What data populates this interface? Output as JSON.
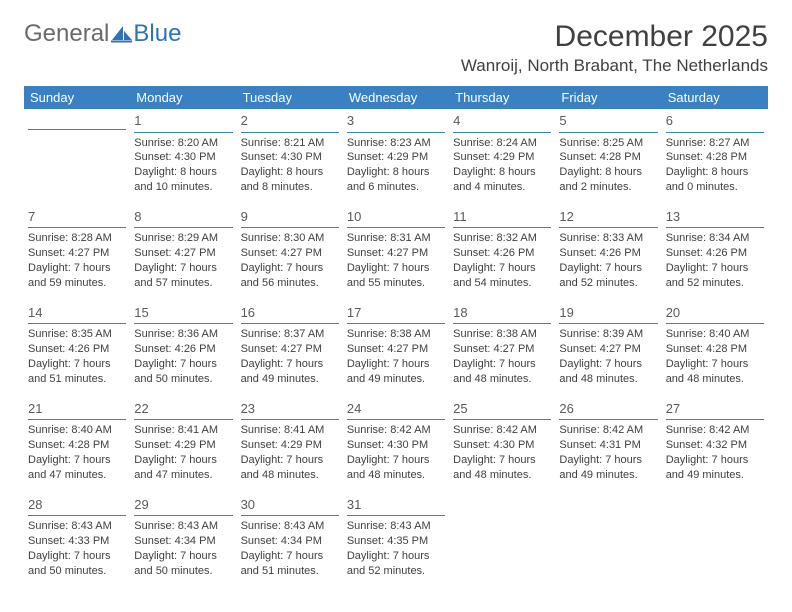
{
  "brand": {
    "part1": "General",
    "part2": "Blue"
  },
  "title": "December 2025",
  "subtitle": "Wanroij, North Brabant, The Netherlands",
  "colors": {
    "header_bg": "#3a81c4",
    "header_fg": "#ffffff",
    "rule": "#3a81c4",
    "text": "#404040",
    "brand_gray": "#6a6a6a",
    "brand_blue": "#2f72b8",
    "page_bg": "#ffffff"
  },
  "weekdays": [
    "Sunday",
    "Monday",
    "Tuesday",
    "Wednesday",
    "Thursday",
    "Friday",
    "Saturday"
  ],
  "first_weekday_index": 1,
  "days": [
    {
      "n": 1,
      "sunrise": "8:20 AM",
      "sunset": "4:30 PM",
      "dl": "8 hours and 10 minutes."
    },
    {
      "n": 2,
      "sunrise": "8:21 AM",
      "sunset": "4:30 PM",
      "dl": "8 hours and 8 minutes."
    },
    {
      "n": 3,
      "sunrise": "8:23 AM",
      "sunset": "4:29 PM",
      "dl": "8 hours and 6 minutes."
    },
    {
      "n": 4,
      "sunrise": "8:24 AM",
      "sunset": "4:29 PM",
      "dl": "8 hours and 4 minutes."
    },
    {
      "n": 5,
      "sunrise": "8:25 AM",
      "sunset": "4:28 PM",
      "dl": "8 hours and 2 minutes."
    },
    {
      "n": 6,
      "sunrise": "8:27 AM",
      "sunset": "4:28 PM",
      "dl": "8 hours and 0 minutes."
    },
    {
      "n": 7,
      "sunrise": "8:28 AM",
      "sunset": "4:27 PM",
      "dl": "7 hours and 59 minutes."
    },
    {
      "n": 8,
      "sunrise": "8:29 AM",
      "sunset": "4:27 PM",
      "dl": "7 hours and 57 minutes."
    },
    {
      "n": 9,
      "sunrise": "8:30 AM",
      "sunset": "4:27 PM",
      "dl": "7 hours and 56 minutes."
    },
    {
      "n": 10,
      "sunrise": "8:31 AM",
      "sunset": "4:27 PM",
      "dl": "7 hours and 55 minutes."
    },
    {
      "n": 11,
      "sunrise": "8:32 AM",
      "sunset": "4:26 PM",
      "dl": "7 hours and 54 minutes."
    },
    {
      "n": 12,
      "sunrise": "8:33 AM",
      "sunset": "4:26 PM",
      "dl": "7 hours and 52 minutes."
    },
    {
      "n": 13,
      "sunrise": "8:34 AM",
      "sunset": "4:26 PM",
      "dl": "7 hours and 52 minutes."
    },
    {
      "n": 14,
      "sunrise": "8:35 AM",
      "sunset": "4:26 PM",
      "dl": "7 hours and 51 minutes."
    },
    {
      "n": 15,
      "sunrise": "8:36 AM",
      "sunset": "4:26 PM",
      "dl": "7 hours and 50 minutes."
    },
    {
      "n": 16,
      "sunrise": "8:37 AM",
      "sunset": "4:27 PM",
      "dl": "7 hours and 49 minutes."
    },
    {
      "n": 17,
      "sunrise": "8:38 AM",
      "sunset": "4:27 PM",
      "dl": "7 hours and 49 minutes."
    },
    {
      "n": 18,
      "sunrise": "8:38 AM",
      "sunset": "4:27 PM",
      "dl": "7 hours and 48 minutes."
    },
    {
      "n": 19,
      "sunrise": "8:39 AM",
      "sunset": "4:27 PM",
      "dl": "7 hours and 48 minutes."
    },
    {
      "n": 20,
      "sunrise": "8:40 AM",
      "sunset": "4:28 PM",
      "dl": "7 hours and 48 minutes."
    },
    {
      "n": 21,
      "sunrise": "8:40 AM",
      "sunset": "4:28 PM",
      "dl": "7 hours and 47 minutes."
    },
    {
      "n": 22,
      "sunrise": "8:41 AM",
      "sunset": "4:29 PM",
      "dl": "7 hours and 47 minutes."
    },
    {
      "n": 23,
      "sunrise": "8:41 AM",
      "sunset": "4:29 PM",
      "dl": "7 hours and 48 minutes."
    },
    {
      "n": 24,
      "sunrise": "8:42 AM",
      "sunset": "4:30 PM",
      "dl": "7 hours and 48 minutes."
    },
    {
      "n": 25,
      "sunrise": "8:42 AM",
      "sunset": "4:30 PM",
      "dl": "7 hours and 48 minutes."
    },
    {
      "n": 26,
      "sunrise": "8:42 AM",
      "sunset": "4:31 PM",
      "dl": "7 hours and 49 minutes."
    },
    {
      "n": 27,
      "sunrise": "8:42 AM",
      "sunset": "4:32 PM",
      "dl": "7 hours and 49 minutes."
    },
    {
      "n": 28,
      "sunrise": "8:43 AM",
      "sunset": "4:33 PM",
      "dl": "7 hours and 50 minutes."
    },
    {
      "n": 29,
      "sunrise": "8:43 AM",
      "sunset": "4:34 PM",
      "dl": "7 hours and 50 minutes."
    },
    {
      "n": 30,
      "sunrise": "8:43 AM",
      "sunset": "4:34 PM",
      "dl": "7 hours and 51 minutes."
    },
    {
      "n": 31,
      "sunrise": "8:43 AM",
      "sunset": "4:35 PM",
      "dl": "7 hours and 52 minutes."
    }
  ],
  "labels": {
    "sunrise": "Sunrise:",
    "sunset": "Sunset:",
    "daylight": "Daylight:"
  }
}
